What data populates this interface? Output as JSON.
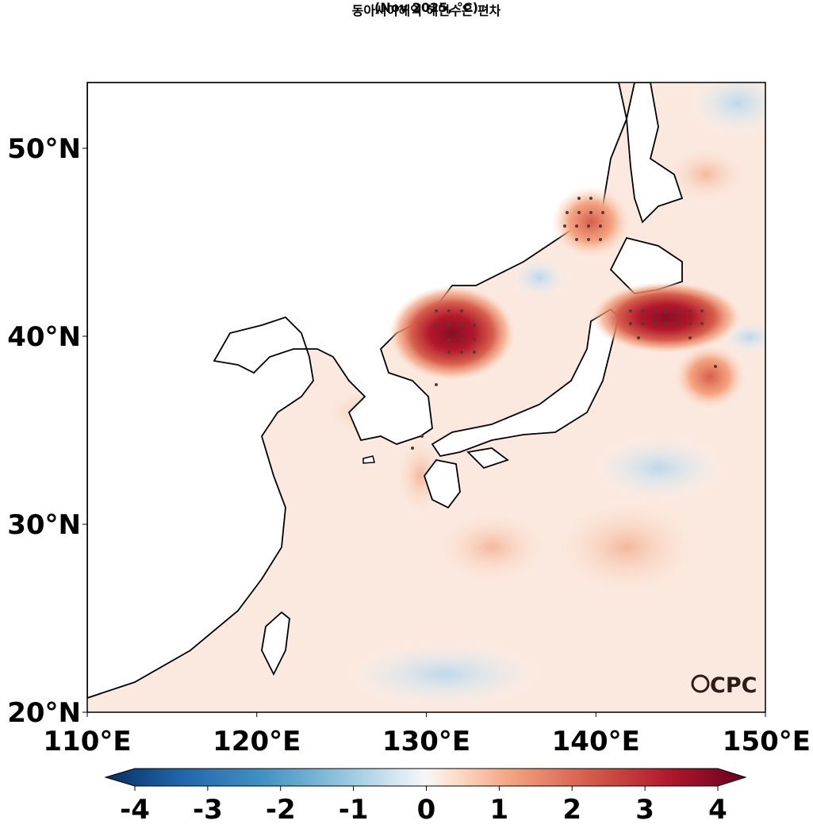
{
  "title": "동아시아해역 해면수온 편차",
  "subtitle": "(Nov 2025, °C)",
  "logo_text": "CPC",
  "map": {
    "lon_range": [
      110,
      150
    ],
    "lat_range": [
      20,
      53.5
    ],
    "x_ticks": [
      {
        "lon": 110,
        "label": "110°E"
      },
      {
        "lon": 120,
        "label": "120°E"
      },
      {
        "lon": 130,
        "label": "130°E"
      },
      {
        "lon": 140,
        "label": "140°E"
      },
      {
        "lon": 150,
        "label": "150°E"
      }
    ],
    "y_ticks": [
      {
        "lat": 20,
        "label": "20°N"
      },
      {
        "lat": 30,
        "label": "30°N"
      },
      {
        "lat": 40,
        "label": "40°N"
      },
      {
        "lat": 50,
        "label": "50°N"
      }
    ],
    "warm_anomalies": [
      {
        "name": "east-sea-korea-hotspot",
        "lon": 132.0,
        "lat": 40.0,
        "value": 3.6
      },
      {
        "name": "east-of-honshu-hotspot",
        "lon": 144.5,
        "lat": 40.8,
        "value": 3.8
      },
      {
        "name": "tatar-strait-hotspot",
        "lon": 139.6,
        "lat": 46.3,
        "value": 2.4
      },
      {
        "name": "kuroshio-extension-warm",
        "lon": 147.0,
        "lat": 38.0,
        "value": 2.0
      }
    ],
    "cool_anomalies": [
      {
        "name": "east-sea-cool",
        "lon": 137.0,
        "lat": 43.0,
        "value": -0.4
      },
      {
        "name": "kuroshio-ext-cool",
        "lon": 148.5,
        "lat": 40.0,
        "value": -0.8
      }
    ]
  },
  "colorbar": {
    "min": -4,
    "max": 4,
    "ticks": [
      "-4",
      "-3",
      "-2",
      "-1",
      "0",
      "1",
      "2",
      "3",
      "4"
    ],
    "colors": [
      "#053061",
      "#2166ac",
      "#4393c3",
      "#92c5de",
      "#d1e5f0",
      "#f7f7f7",
      "#fddbc7",
      "#f4a582",
      "#d6604d",
      "#b2182b",
      "#67001f"
    ]
  }
}
